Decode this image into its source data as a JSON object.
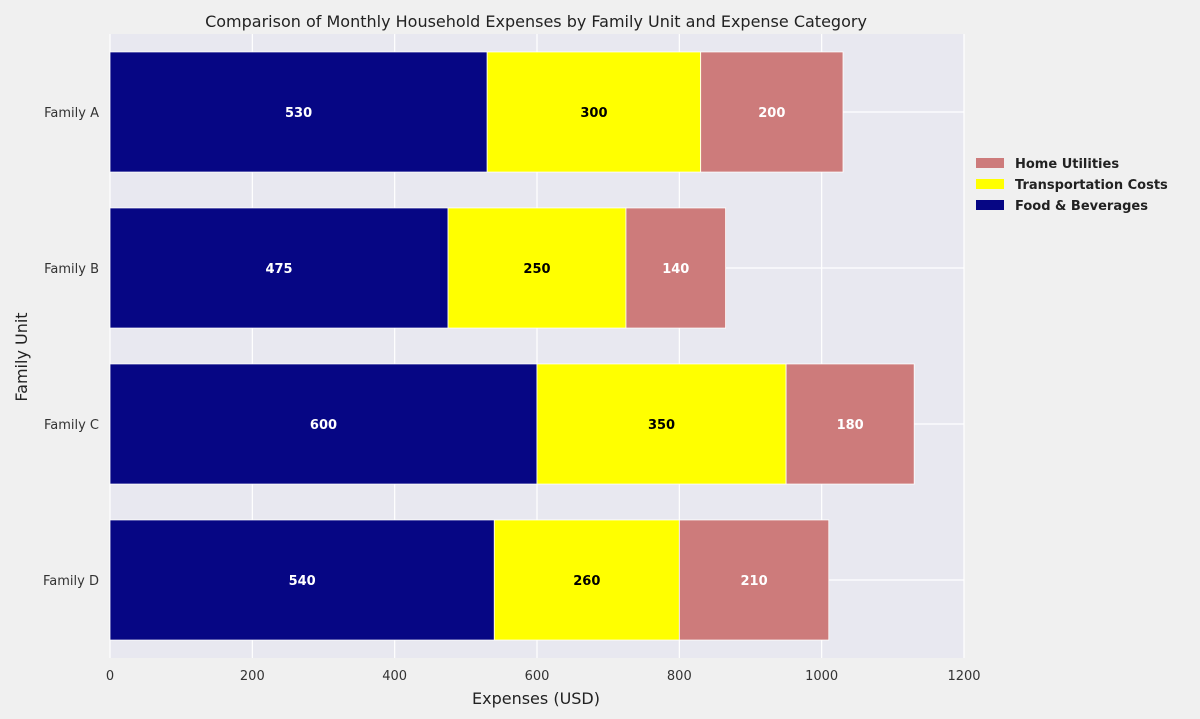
{
  "chart_data": {
    "type": "bar",
    "orientation": "horizontal",
    "stacked": true,
    "title": "Comparison of Monthly Household Expenses by Family Unit and Expense Category",
    "xlabel": "Expenses (USD)",
    "ylabel": "Family Unit",
    "categories": [
      "Family A",
      "Family B",
      "Family C",
      "Family D"
    ],
    "xlim": [
      0,
      1200
    ],
    "xticks": [
      "0",
      "200",
      "400",
      "600",
      "800",
      "1000",
      "1200"
    ],
    "grid": true,
    "legend_position": "right",
    "series": [
      {
        "name": "Food & Beverages",
        "color": "#060684",
        "label_color": "#ffffff",
        "values": [
          530,
          475,
          600,
          540
        ]
      },
      {
        "name": "Transportation Costs",
        "color": "#ffff00",
        "label_color": "#000000",
        "values": [
          300,
          250,
          350,
          260
        ]
      },
      {
        "name": "Home Utilities",
        "color": "#cd7b7b",
        "label_color": "#ffffff",
        "values": [
          200,
          140,
          180,
          210
        ]
      }
    ],
    "legend_order": [
      "Home Utilities",
      "Transportation Costs",
      "Food & Beverages"
    ]
  }
}
